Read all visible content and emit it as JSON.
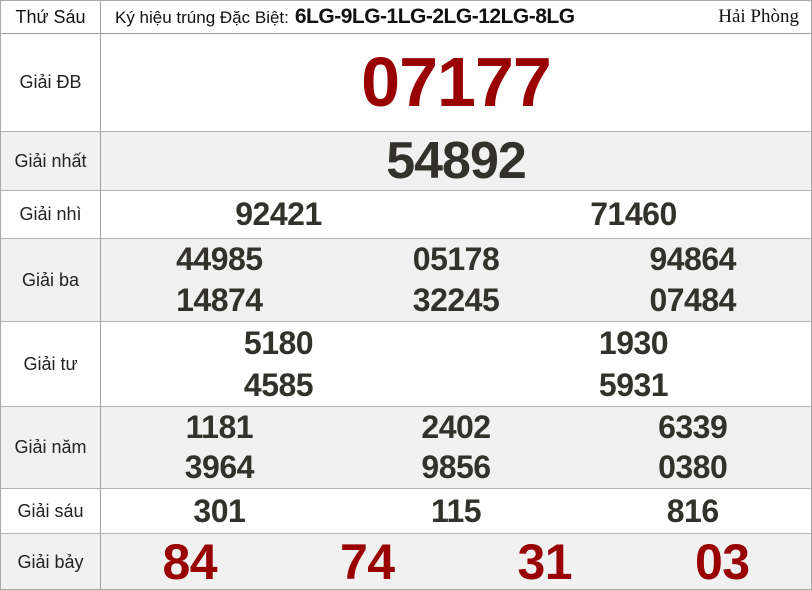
{
  "header": {
    "day": "Thứ Sáu",
    "sign_label": "Ký hiệu trúng Đặc Biệt:",
    "sign_value": "6LG-9LG-1LG-2LG-12LG-8LG",
    "province": "Hải Phòng"
  },
  "colors": {
    "special_red": "#990000",
    "number_dark": "#33312b",
    "alt_row_bg": "#f1f1f1",
    "border_gray": "#a0a0a0"
  },
  "prizes": [
    {
      "label": "Giải ĐB",
      "style": "special",
      "lines": [
        [
          "07177"
        ]
      ]
    },
    {
      "label": "Giải nhất",
      "style": "first",
      "lines": [
        [
          "54892"
        ]
      ]
    },
    {
      "label": "Giải nhì",
      "style": "normal",
      "lines": [
        [
          "92421",
          "71460"
        ]
      ]
    },
    {
      "label": "Giải ba",
      "style": "normal",
      "lines": [
        [
          "44985",
          "05178",
          "94864"
        ],
        [
          "14874",
          "32245",
          "07484"
        ]
      ]
    },
    {
      "label": "Giải tư",
      "style": "normal",
      "lines": [
        [
          "5180",
          "1930"
        ],
        [
          "4585",
          "5931"
        ]
      ]
    },
    {
      "label": "Giải năm",
      "style": "normal",
      "lines": [
        [
          "1181",
          "2402",
          "6339"
        ],
        [
          "3964",
          "9856",
          "0380"
        ]
      ]
    },
    {
      "label": "Giải sáu",
      "style": "normal",
      "lines": [
        [
          "301",
          "115",
          "816"
        ]
      ]
    },
    {
      "label": "Giải bảy",
      "style": "seventh",
      "lines": [
        [
          "84",
          "74",
          "31",
          "03"
        ]
      ]
    }
  ]
}
